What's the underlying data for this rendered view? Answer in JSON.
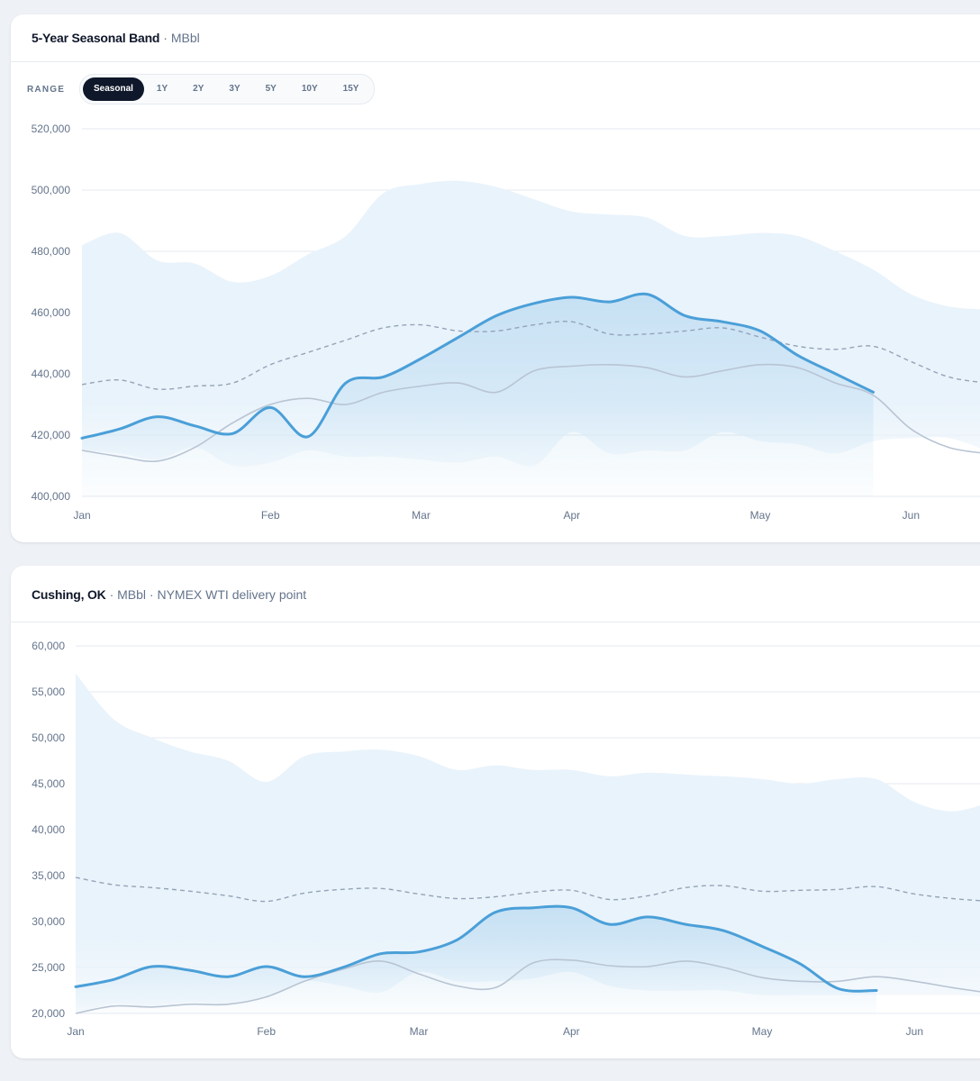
{
  "range": {
    "label": "RANGE",
    "options": [
      "Seasonal",
      "1Y",
      "2Y",
      "3Y",
      "5Y",
      "10Y",
      "15Y"
    ],
    "selected": "Seasonal"
  },
  "colors": {
    "current": "#4a9fd8",
    "band": "#e9f3fb",
    "average": "#94a3b8",
    "prior_year": "#b8c4d3",
    "grid": "#e6eaf0"
  },
  "chart_data": [
    {
      "type": "area",
      "title": "5-Year Seasonal Band",
      "subtitle": "· MBbl",
      "ylim": [
        400000,
        520000
      ],
      "yticks": [
        400000,
        420000,
        440000,
        460000,
        480000,
        500000,
        520000
      ],
      "ytick_labels": [
        "400,000",
        "420,000",
        "440,000",
        "460,000",
        "480,000",
        "500,000",
        "520,000"
      ],
      "xlim": [
        0,
        24
      ],
      "month_ticks": [
        0,
        5,
        9,
        13,
        18,
        22
      ],
      "month_labels": [
        "Jan",
        "Feb",
        "Mar",
        "Apr",
        "May",
        "Jun"
      ],
      "grid": true,
      "band_max": [
        482000,
        486000,
        477000,
        476000,
        470000,
        472000,
        479000,
        485000,
        499000,
        502000,
        503000,
        501000,
        497000,
        493000,
        492000,
        491000,
        485000,
        485000,
        486000,
        485000,
        480000,
        474000,
        466000,
        462000,
        461000
      ],
      "band_min": [
        415000,
        414000,
        412000,
        416000,
        410000,
        411000,
        415000,
        413000,
        413000,
        412000,
        411000,
        413000,
        410000,
        421000,
        414000,
        415000,
        415000,
        421000,
        418000,
        417000,
        414000,
        418000,
        419000,
        419000,
        415000
      ],
      "average": [
        436500,
        438000,
        435000,
        436000,
        437000,
        443000,
        447000,
        451000,
        455000,
        456000,
        454000,
        454000,
        456000,
        457000,
        453000,
        453000,
        454000,
        455000,
        452000,
        449000,
        448000,
        449000,
        444000,
        439000,
        437000
      ],
      "prior_year": [
        415000,
        413000,
        411500,
        416000,
        424000,
        430000,
        432000,
        430000,
        434000,
        436000,
        437000,
        434000,
        441000,
        442500,
        443000,
        442000,
        439000,
        441000,
        443000,
        442000,
        437000,
        433000,
        422000,
        416000,
        414000
      ],
      "current": [
        419000,
        422000,
        426000,
        423000,
        420500,
        429000,
        419500,
        437000,
        439000,
        445000,
        452000,
        459000,
        463000,
        465000,
        463500,
        466000,
        459000,
        457000,
        454000,
        446000,
        440000,
        434000
      ]
    },
    {
      "type": "area",
      "title": "Cushing, OK",
      "subtitle": "· MBbl · NYMEX WTI delivery point",
      "ylim": [
        20000,
        60000
      ],
      "yticks": [
        20000,
        25000,
        30000,
        35000,
        40000,
        45000,
        50000,
        55000,
        60000
      ],
      "ytick_labels": [
        "20,000",
        "25,000",
        "30,000",
        "35,000",
        "40,000",
        "45,000",
        "50,000",
        "55,000",
        "60,000"
      ],
      "xlim": [
        0,
        24
      ],
      "month_ticks": [
        0,
        5,
        9,
        13,
        18,
        22
      ],
      "month_labels": [
        "Jan",
        "Feb",
        "Mar",
        "Apr",
        "May",
        "Jun"
      ],
      "grid": true,
      "band_max": [
        57000,
        52000,
        50000,
        48500,
        47500,
        45200,
        48000,
        48500,
        48700,
        48000,
        46500,
        47000,
        46500,
        46500,
        45800,
        46200,
        46000,
        45800,
        45500,
        45000,
        45500,
        45500,
        43000,
        42000,
        43000
      ],
      "band_min": [
        20000,
        21000,
        20800,
        21200,
        21000,
        21800,
        23500,
        23000,
        22300,
        24500,
        23500,
        23500,
        23800,
        24500,
        23000,
        22500,
        22500,
        22500,
        22000,
        22000,
        22000,
        22000,
        22000,
        22000,
        21800
      ],
      "average": [
        34800,
        34000,
        33700,
        33300,
        32800,
        32200,
        33100,
        33500,
        33600,
        33000,
        32500,
        32700,
        33200,
        33400,
        32400,
        32800,
        33700,
        33900,
        33300,
        33400,
        33500,
        33800,
        33000,
        32500,
        32200
      ],
      "prior_year": [
        20000,
        20800,
        20700,
        21000,
        21000,
        21800,
        23500,
        24800,
        25700,
        24300,
        23000,
        22800,
        25500,
        25800,
        25200,
        25100,
        25700,
        25000,
        23900,
        23500,
        23500,
        24000,
        23500,
        22800,
        22200
      ],
      "current": [
        22900,
        23700,
        25100,
        24700,
        24000,
        25100,
        24000,
        25000,
        26500,
        26700,
        28000,
        31000,
        31500,
        31500,
        29700,
        30500,
        29700,
        29000,
        27300,
        25400,
        22700,
        22500
      ]
    }
  ]
}
